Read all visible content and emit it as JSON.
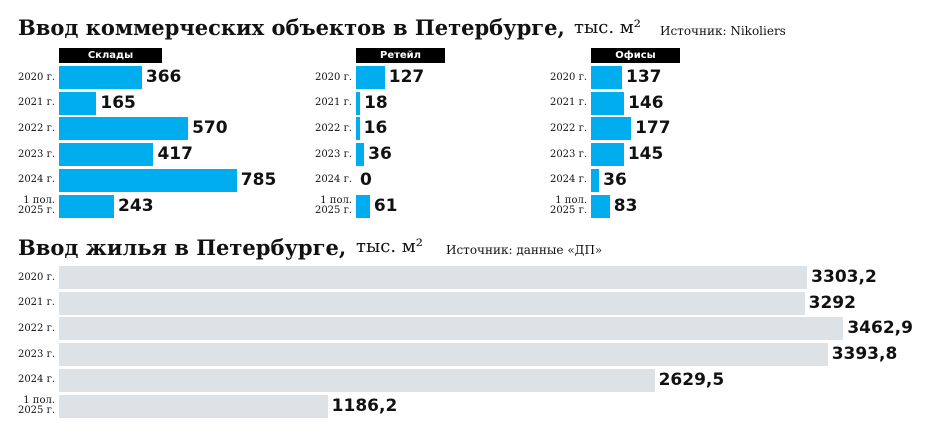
{
  "header": {
    "title": "Ввод коммерческих объектов в Петербурге,",
    "unit": "тыс. м²",
    "source": "Источник: Nikoliers"
  },
  "chart_data": [
    {
      "type": "bar",
      "orientation": "horizontal",
      "title": "Склады",
      "categories": [
        "2020 г.",
        "2021 г.",
        "2022 г.",
        "2023 г.",
        "2024 г.",
        "1 пол.\n2025 г."
      ],
      "values": [
        366,
        165,
        570,
        417,
        785,
        243
      ],
      "color": "#00aeef"
    },
    {
      "type": "bar",
      "orientation": "horizontal",
      "title": "Ретейл",
      "categories": [
        "2020 г.",
        "2021 г.",
        "2022 г.",
        "2023 г.",
        "2024 г.",
        "1 пол.\n2025 г."
      ],
      "values": [
        127,
        18,
        16,
        36,
        0,
        61
      ],
      "color": "#00aeef"
    },
    {
      "type": "bar",
      "orientation": "horizontal",
      "title": "Офисы",
      "categories": [
        "2020 г.",
        "2021 г.",
        "2022 г.",
        "2023 г.",
        "2024 г.",
        "1 пол.\n2025 г."
      ],
      "values": [
        137,
        146,
        177,
        145,
        36,
        83
      ],
      "color": "#00aeef"
    },
    {
      "type": "bar",
      "orientation": "horizontal",
      "title": "Ввод жилья в Петербурге,",
      "unit": "тыс. м²",
      "source": "Источник: данные «ДП»",
      "categories": [
        "2020 г.",
        "2021 г.",
        "2022 г.",
        "2023 г.",
        "2024 г.",
        "1 пол.\n2025 г."
      ],
      "values": [
        3303.2,
        3292,
        3462.9,
        3393.8,
        2629.5,
        1186.2
      ],
      "value_labels": [
        "3303,2",
        "3292",
        "3462,9",
        "3393,8",
        "2629,5",
        "1186,2"
      ],
      "color": "#dde2e6"
    }
  ]
}
